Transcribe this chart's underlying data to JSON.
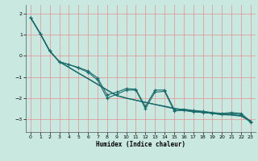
{
  "xlabel": "Humidex (Indice chaleur)",
  "bg_color": "#c8e8e0",
  "line_color": "#1a6b6b",
  "grid_color": "#e89090",
  "xlim": [
    -0.5,
    23.5
  ],
  "ylim": [
    -3.6,
    2.4
  ],
  "yticks": [
    2,
    1,
    0,
    -1,
    -2,
    -3
  ],
  "xticks": [
    0,
    1,
    2,
    3,
    4,
    5,
    6,
    7,
    8,
    9,
    10,
    11,
    12,
    13,
    14,
    15,
    16,
    17,
    18,
    19,
    20,
    21,
    22,
    23
  ],
  "line_straight1": [
    1.8,
    1.05,
    0.22,
    -0.28,
    -0.55,
    -0.82,
    -1.08,
    -1.35,
    -1.62,
    -1.88,
    -2.0,
    -2.1,
    -2.2,
    -2.3,
    -2.4,
    -2.5,
    -2.58,
    -2.62,
    -2.68,
    -2.72,
    -2.78,
    -2.8,
    -2.85,
    -3.1
  ],
  "line_straight2": [
    1.8,
    1.05,
    0.22,
    -0.28,
    -0.55,
    -0.82,
    -1.08,
    -1.35,
    -1.62,
    -1.88,
    -2.0,
    -2.1,
    -2.2,
    -2.3,
    -2.38,
    -2.48,
    -2.55,
    -2.6,
    -2.65,
    -2.7,
    -2.76,
    -2.78,
    -2.83,
    -3.07
  ],
  "line_zigzag1": [
    1.8,
    1.05,
    0.22,
    -0.28,
    -0.42,
    -0.55,
    -0.72,
    -1.05,
    -1.85,
    -1.72,
    -1.55,
    -1.58,
    -2.4,
    -1.62,
    -1.62,
    -2.52,
    -2.52,
    -2.58,
    -2.62,
    -2.68,
    -2.72,
    -2.68,
    -2.72,
    -3.1
  ],
  "line_zigzag2": [
    1.8,
    1.05,
    0.22,
    -0.28,
    -0.42,
    -0.58,
    -0.78,
    -1.15,
    -2.0,
    -1.82,
    -1.62,
    -1.62,
    -2.5,
    -1.72,
    -1.68,
    -2.6,
    -2.58,
    -2.65,
    -2.68,
    -2.72,
    -2.78,
    -2.72,
    -2.78,
    -3.15
  ]
}
